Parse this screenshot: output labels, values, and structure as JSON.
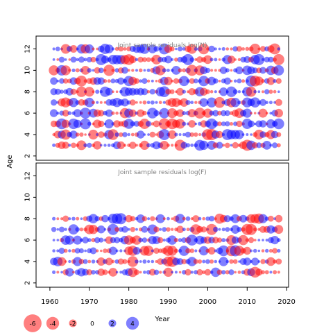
{
  "chart_data": {
    "type": "scatter",
    "subtype": "bubble-residuals",
    "xlabel": "Year",
    "ylabel": "Age",
    "colors": {
      "positive": "#0000ff",
      "negative": "#ff0000",
      "panel_title": "#808080"
    },
    "x_ticks": [
      "1960",
      "1970",
      "1980",
      "1990",
      "2000",
      "2010",
      "2020"
    ],
    "x_tick_values": [
      1960,
      1970,
      1980,
      1990,
      2000,
      2010,
      2020
    ],
    "xlim": [
      1956.5,
      2020.5
    ],
    "years": [
      1961,
      2018
    ],
    "panels": [
      {
        "title": "Joint sample residuals log(N)",
        "ylim": [
          1.6,
          13.2
        ],
        "y_ticks": [
          "2",
          "4",
          "6",
          "8",
          "10",
          "12"
        ],
        "y_tick_values": [
          2,
          4,
          6,
          8,
          10,
          12
        ],
        "ages": [
          3,
          4,
          5,
          6,
          7,
          8,
          9,
          10,
          11,
          12
        ],
        "seed": 17
      },
      {
        "title": "Joint sample residuals log(F)",
        "ylim": [
          1.6,
          13.2
        ],
        "y_ticks": [
          "2",
          "4",
          "6",
          "8",
          "10",
          "12"
        ],
        "y_tick_values": [
          2,
          4,
          6,
          8,
          10,
          12
        ],
        "ages": [
          3,
          4,
          5,
          6,
          7,
          8
        ],
        "seed": 91
      }
    ],
    "legend": {
      "labels": [
        "-6",
        "-4",
        "-2",
        "0",
        "2",
        "4"
      ],
      "values": [
        -6,
        -4,
        -2,
        0,
        2,
        4
      ]
    }
  }
}
